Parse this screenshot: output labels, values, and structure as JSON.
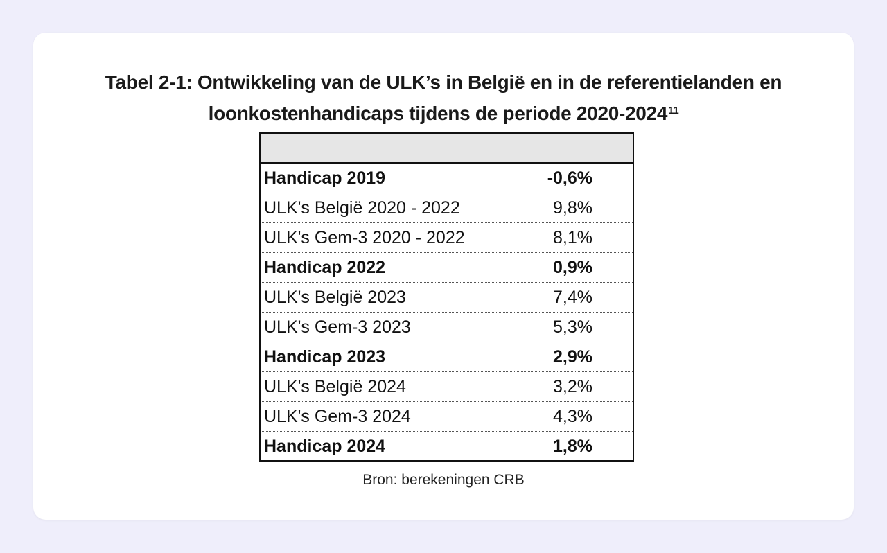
{
  "title": {
    "line1": "Tabel 2-1: Ontwikkeling van de ULK’s in België en in de referentielanden en",
    "line2": "loonkostenhandicaps tijdens de periode 2020-2024",
    "footnote": "11"
  },
  "table": {
    "rows": [
      {
        "label": "Handicap 2019",
        "value": "-0,6%",
        "bold": true
      },
      {
        "label": "ULK's België 2020 - 2022",
        "value": "9,8%",
        "bold": false
      },
      {
        "label": "ULK's Gem-3 2020 - 2022",
        "value": "8,1%",
        "bold": false
      },
      {
        "label": "Handicap 2022",
        "value": "0,9%",
        "bold": true
      },
      {
        "label": "ULK's België 2023",
        "value": "7,4%",
        "bold": false
      },
      {
        "label": "ULK's Gem-3 2023",
        "value": "5,3%",
        "bold": false
      },
      {
        "label": "Handicap 2023",
        "value": "2,9%",
        "bold": true
      },
      {
        "label": "ULK's België 2024",
        "value": "3,2%",
        "bold": false
      },
      {
        "label": "ULK's Gem-3 2024",
        "value": "4,3%",
        "bold": false
      },
      {
        "label": "Handicap 2024",
        "value": "1,8%",
        "bold": true
      }
    ]
  },
  "source": "Bron: berekeningen CRB"
}
